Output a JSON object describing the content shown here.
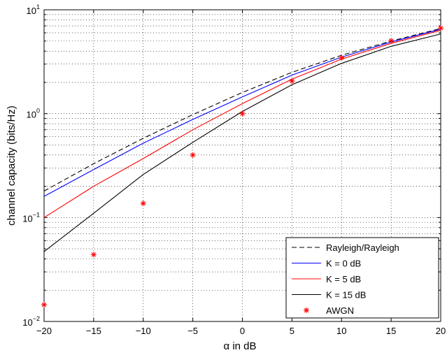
{
  "chart_data": {
    "type": "line",
    "xlabel": "α in dB",
    "ylabel": "channel capacity (bits/Hz)",
    "xlim": [
      -20,
      20
    ],
    "ylim": [
      0.01,
      10
    ],
    "yscale": "log",
    "grid": true,
    "legend_position": "bottom-right",
    "x_ticks": [
      -20,
      -15,
      -10,
      -5,
      0,
      5,
      10,
      15,
      20
    ],
    "x_tick_labels": [
      "−20",
      "−15",
      "−10",
      "−5",
      "0",
      "5",
      "10",
      "15",
      "20"
    ],
    "y_ticks": [
      {
        "base": "10",
        "exp": "−2",
        "value": 0.01
      },
      {
        "base": "10",
        "exp": "−1",
        "value": 0.1
      },
      {
        "base": "10",
        "exp": "0",
        "value": 1
      },
      {
        "base": "10",
        "exp": "1",
        "value": 10
      }
    ],
    "series": [
      {
        "name": "Rayleigh/Rayleigh",
        "style": "dashed",
        "color": "#000000",
        "x": [
          -20,
          -15,
          -10,
          -5,
          0,
          5,
          10,
          15,
          20
        ],
        "values": [
          0.18,
          0.33,
          0.58,
          0.98,
          1.6,
          2.5,
          3.65,
          5.0,
          6.6
        ]
      },
      {
        "name": "K = 0 dB",
        "style": "solid",
        "color": "#0000ff",
        "x": [
          -20,
          -15,
          -10,
          -5,
          0,
          5,
          10,
          15,
          20
        ],
        "values": [
          0.16,
          0.29,
          0.52,
          0.88,
          1.45,
          2.35,
          3.5,
          4.9,
          6.5
        ]
      },
      {
        "name": "K = 5 dB",
        "style": "solid",
        "color": "#ff0000",
        "x": [
          -20,
          -15,
          -10,
          -5,
          0,
          5,
          10,
          15,
          20
        ],
        "values": [
          0.1,
          0.2,
          0.37,
          0.7,
          1.25,
          2.15,
          3.35,
          4.75,
          6.35
        ]
      },
      {
        "name": "K = 15 dB",
        "style": "solid",
        "color": "#000000",
        "x": [
          -20,
          -15,
          -10,
          -5,
          0,
          5,
          10,
          15,
          20
        ],
        "values": [
          0.047,
          0.11,
          0.26,
          0.53,
          1.05,
          1.9,
          3.05,
          4.45,
          5.85
        ]
      },
      {
        "name": "AWGN",
        "style": "marker",
        "color": "#ff0000",
        "x": [
          -20,
          -15,
          -10,
          -5,
          0,
          5,
          10,
          15,
          20
        ],
        "values": [
          0.0145,
          0.044,
          0.137,
          0.4,
          1.0,
          2.06,
          3.46,
          5.03,
          6.66
        ]
      }
    ]
  }
}
